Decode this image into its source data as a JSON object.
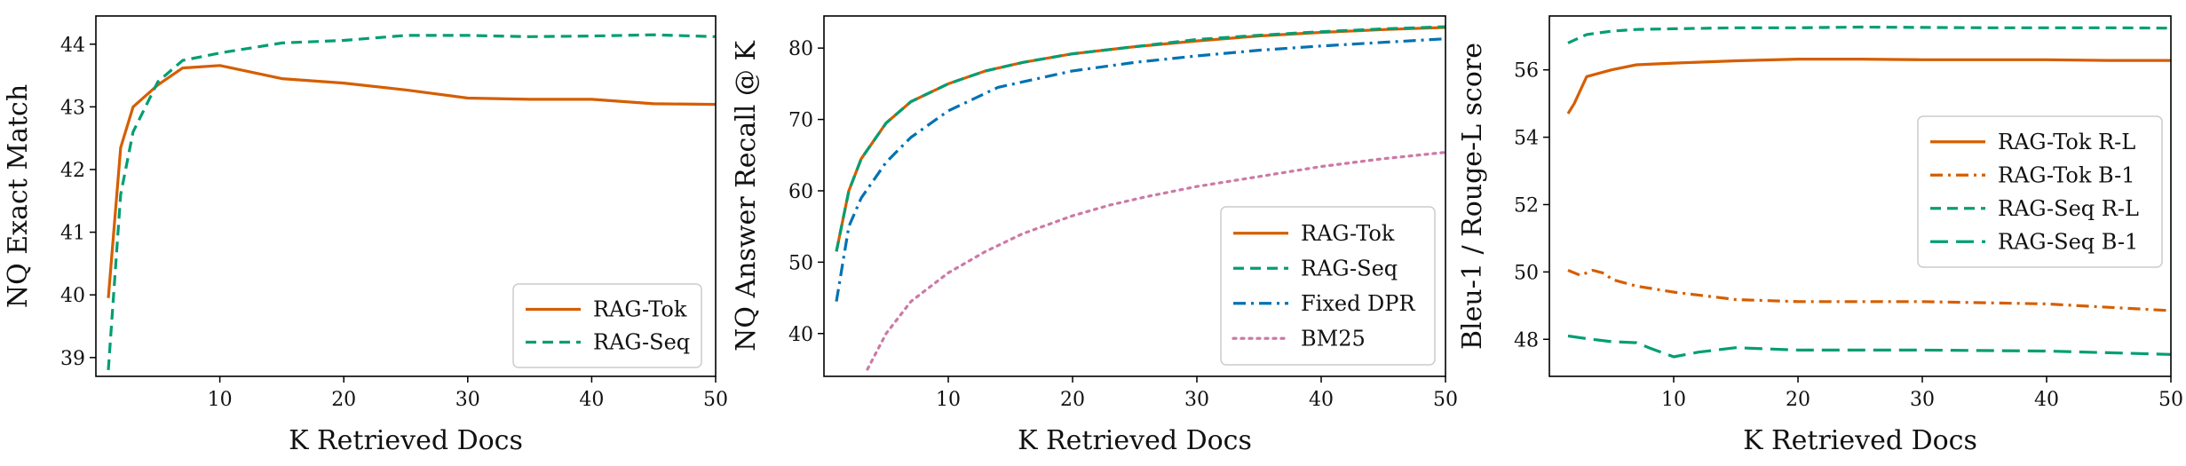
{
  "chart_data": [
    {
      "type": "line",
      "xlabel": "K Retrieved Docs",
      "ylabel": "NQ Exact Match",
      "xlim": [
        0,
        50
      ],
      "ylim": [
        38.7,
        44.45
      ],
      "xticks": [
        10,
        20,
        30,
        40,
        50
      ],
      "yticks": [
        39,
        40,
        41,
        42,
        43,
        44
      ],
      "grid": false,
      "legend": "lower right",
      "series": [
        {
          "name": "RAG-Tok",
          "color": "#d55e00",
          "dash": "solid",
          "x": [
            1,
            2,
            3,
            5,
            7,
            10,
            15,
            20,
            25,
            30,
            35,
            40,
            45,
            50
          ],
          "y": [
            39.95,
            42.35,
            43.0,
            43.35,
            43.62,
            43.66,
            43.45,
            43.38,
            43.27,
            43.14,
            43.12,
            43.12,
            43.05,
            43.04
          ]
        },
        {
          "name": "RAG-Seq",
          "color": "#009e73",
          "dash": "dashed",
          "x": [
            1,
            2,
            3,
            5,
            7,
            10,
            15,
            20,
            25,
            30,
            35,
            40,
            45,
            50
          ],
          "y": [
            38.8,
            41.6,
            42.6,
            43.4,
            43.74,
            43.86,
            44.02,
            44.06,
            44.14,
            44.14,
            44.12,
            44.13,
            44.15,
            44.12
          ]
        }
      ]
    },
    {
      "type": "line",
      "xlabel": "K Retrieved Docs",
      "ylabel": "NQ Answer Recall @ K",
      "xlim": [
        0,
        50
      ],
      "ylim": [
        34,
        84.5
      ],
      "xticks": [
        10,
        20,
        30,
        40,
        50
      ],
      "yticks": [
        40,
        50,
        60,
        70,
        80
      ],
      "grid": false,
      "legend": "lower right",
      "series": [
        {
          "name": "RAG-Tok",
          "color": "#d55e00",
          "dash": "solid",
          "x": [
            1,
            2,
            3,
            5,
            7,
            10,
            13,
            16,
            20,
            25,
            30,
            35,
            40,
            45,
            50
          ],
          "y": [
            51.5,
            60.0,
            64.5,
            69.5,
            72.5,
            75.0,
            76.8,
            78.0,
            79.2,
            80.2,
            81.0,
            81.7,
            82.2,
            82.6,
            82.9
          ]
        },
        {
          "name": "RAG-Seq",
          "color": "#009e73",
          "dash": "dashed",
          "x": [
            1,
            2,
            3,
            5,
            7,
            10,
            13,
            16,
            20,
            25,
            30,
            35,
            40,
            45,
            50
          ],
          "y": [
            51.5,
            60.0,
            64.5,
            69.5,
            72.5,
            75.0,
            76.8,
            78.0,
            79.2,
            80.2,
            81.2,
            81.8,
            82.3,
            82.7,
            83.0
          ]
        },
        {
          "name": "Fixed DPR",
          "color": "#0072b2",
          "dash": "dashdot",
          "x": [
            1,
            2,
            3,
            5,
            7,
            10,
            14,
            20,
            25,
            30,
            35,
            40,
            45,
            50
          ],
          "y": [
            44.5,
            55.0,
            59.0,
            64.0,
            67.5,
            71.2,
            74.5,
            76.8,
            78.0,
            78.9,
            79.7,
            80.3,
            80.8,
            81.3
          ]
        },
        {
          "name": "BM25",
          "color": "#cc79a7",
          "dash": "dotted",
          "x": [
            3.5,
            5,
            7,
            10,
            13,
            16,
            20,
            23,
            26,
            30,
            35,
            40,
            45,
            50
          ],
          "y": [
            35.0,
            40.0,
            44.5,
            48.5,
            51.5,
            54.0,
            56.5,
            58.0,
            59.2,
            60.6,
            62.0,
            63.4,
            64.5,
            65.4
          ]
        }
      ]
    },
    {
      "type": "line",
      "xlabel": "K Retrieved Docs",
      "ylabel": "Bleu-1 / Rouge-L score",
      "xlim": [
        0,
        50
      ],
      "ylim": [
        46.9,
        57.6
      ],
      "xticks": [
        10,
        20,
        30,
        40,
        50
      ],
      "yticks": [
        48,
        50,
        52,
        54,
        56
      ],
      "grid": false,
      "legend": "center right",
      "series": [
        {
          "name": "RAG-Tok R-L",
          "color": "#d55e00",
          "dash": "solid",
          "x": [
            1.5,
            2,
            3,
            5,
            7,
            10,
            15,
            20,
            25,
            30,
            35,
            40,
            45,
            50
          ],
          "y": [
            54.7,
            55.0,
            55.8,
            56.0,
            56.15,
            56.2,
            56.27,
            56.32,
            56.32,
            56.3,
            56.3,
            56.3,
            56.28,
            56.28
          ]
        },
        {
          "name": "RAG-Tok B-1",
          "color": "#d55e00",
          "dash": "dashdot",
          "x": [
            1.5,
            2.5,
            3.5,
            4.5,
            5,
            7,
            10,
            15,
            20,
            30,
            40,
            50
          ],
          "y": [
            50.05,
            49.9,
            50.05,
            49.95,
            49.78,
            49.58,
            49.4,
            49.18,
            49.12,
            49.12,
            49.05,
            48.85
          ]
        },
        {
          "name": "RAG-Seq R-L",
          "color": "#009e73",
          "dash": "dashed",
          "x": [
            1.5,
            3,
            5,
            7,
            10,
            15,
            20,
            25,
            30,
            35,
            40,
            45,
            50
          ],
          "y": [
            56.8,
            57.05,
            57.15,
            57.2,
            57.22,
            57.25,
            57.25,
            57.27,
            57.26,
            57.25,
            57.25,
            57.25,
            57.24
          ]
        },
        {
          "name": "RAG-Seq B-1",
          "color": "#009e73",
          "dash": "longdash",
          "x": [
            1.5,
            3,
            5,
            7,
            8,
            10,
            12,
            15,
            20,
            30,
            40,
            50
          ],
          "y": [
            48.1,
            48.02,
            47.93,
            47.9,
            47.75,
            47.48,
            47.62,
            47.75,
            47.68,
            47.68,
            47.65,
            47.55
          ]
        }
      ]
    }
  ]
}
